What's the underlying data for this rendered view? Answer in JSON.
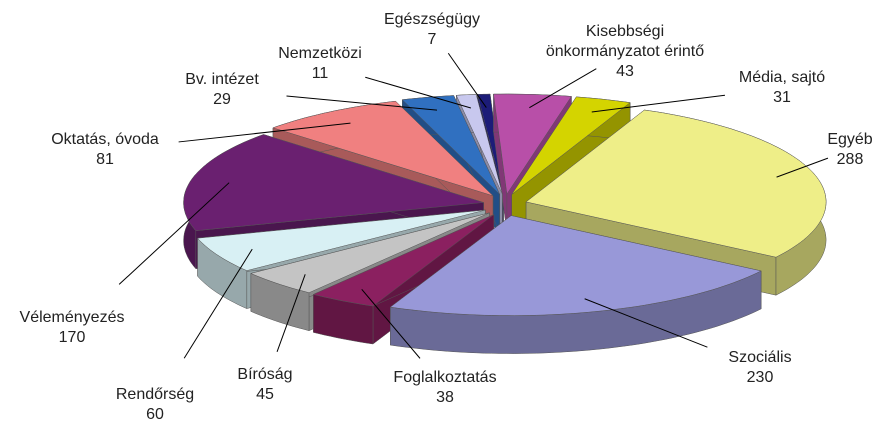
{
  "chart_data": {
    "type": "pie3d",
    "categories": [
      "Egészségügy",
      "Kisebbségi önkormányzatot érintő",
      "Média, sajtó",
      "Egyéb",
      "Szociális",
      "Foglalkoztatás",
      "Bíróság",
      "Rendőrség",
      "Véleményezés",
      "Oktatás, óvoda",
      "Bv. intézet",
      "Nemzetközi"
    ],
    "values": [
      7,
      43,
      31,
      288,
      230,
      38,
      45,
      60,
      170,
      81,
      29,
      11
    ],
    "colors": [
      "#1c1c78",
      "#b84fa8",
      "#d4d400",
      "#eeee88",
      "#9898d8",
      "#8b2060",
      "#c4c4c4",
      "#d8f0f4",
      "#6a2070",
      "#f08080",
      "#3070c0",
      "#c8c8ee"
    ]
  }
}
